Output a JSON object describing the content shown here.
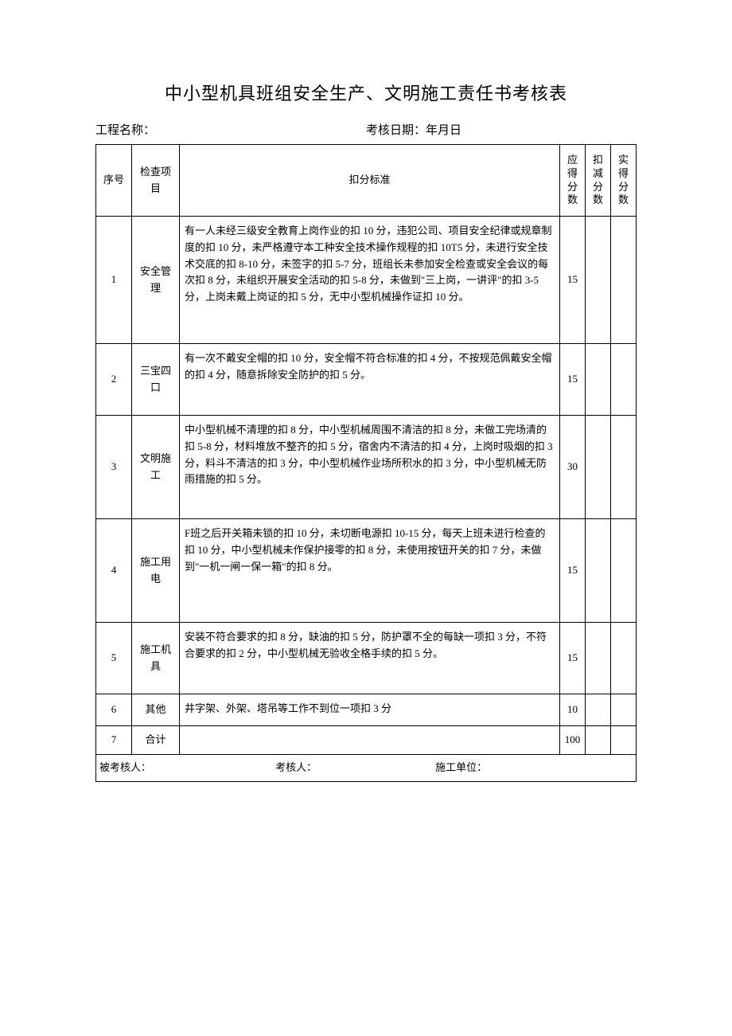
{
  "title": "中小型机具班组安全生产、文明施工责任书考核表",
  "meta": {
    "project_label": "工程名称：",
    "date_label": "考核日期：年月日"
  },
  "headers": {
    "num": "序号",
    "item": "检查项目",
    "standard": "扣分标准",
    "should_score": "应得分数",
    "deduct_score": "扣减分数",
    "actual_score": "实得分数"
  },
  "rows": [
    {
      "num": "1",
      "item": "安全管理",
      "standard": "有一人未经三级安全教育上岗作业的扣 10 分，违犯公司、项目安全纪律或规章制度的扣 10 分，未严格遵守本工种安全技术操作规程的扣 10T5 分，未进行安全技术交底的扣 8-10 分，未签字的扣 5-7 分，班组长未参加安全检查或安全会议的每次扣 8 分，未组织开展安全活动的扣 5-8 分，未做到\"三上岗，一讲评\"的扣 3-5 分，上岗未戴上岗证的扣 5 分，无中小型机械操作证扣 10 分。",
      "should": "15",
      "deduct": "",
      "actual": ""
    },
    {
      "num": "2",
      "item": "三宝四口",
      "standard": "有一次不戴安全帽的扣 10 分，安全帽不符合标准的扣 4 分，不按规范佩戴安全帽的扣 4 分，随意拆除安全防护的扣 5 分。",
      "should": "15",
      "deduct": "",
      "actual": ""
    },
    {
      "num": "3",
      "item": "文明施工",
      "standard": "中小型机械不清理的扣 8 分，中小型机械周围不清洁的扣 8 分，未做工完场清的扣 5-8 分，材料堆放不整齐的扣 5 分，宿舍内不清洁的扣 4 分，上岗时吸烟的扣 3 分，料斗不清洁的扣 3 分，中小型机械作业场所积水的扣 3 分，中小型机械无防雨措施的扣 5 分。",
      "should": "30",
      "deduct": "",
      "actual": ""
    },
    {
      "num": "4",
      "item": "施工用电",
      "standard": "F班之后开关箱未锁的扣 10 分，未切断电源扣 10-15 分，每天上班未进行检查的扣 10 分，中小型机械未作保护接零的扣 8 分，未使用按钮开关的扣 7 分，未做到\"一机一闸一保一箱\"的扣 8 分。",
      "should": "15",
      "deduct": "",
      "actual": ""
    },
    {
      "num": "5",
      "item": "施工机具",
      "standard": "安装不符合要求的扣 8 分，缺油的扣 5 分，防护罩不全的每缺一项扣 3 分，不符合要求的扣 2 分，中小型机械无验收全格手续的扣 5 分。",
      "should": "15",
      "deduct": "",
      "actual": ""
    },
    {
      "num": "6",
      "item": "其他",
      "standard": "井字架、外架、塔吊等工作不到位一项扣 3 分",
      "should": "10",
      "deduct": "",
      "actual": ""
    },
    {
      "num": "7",
      "item": "合计",
      "standard": "",
      "should": "100",
      "deduct": "",
      "actual": ""
    }
  ],
  "footer": {
    "assessed": "被考核人：",
    "assessor": "考核人：",
    "unit": "施工单位："
  },
  "row_heights": [
    "160px",
    "90px",
    "130px",
    "130px",
    "90px",
    "40px",
    "36px"
  ]
}
